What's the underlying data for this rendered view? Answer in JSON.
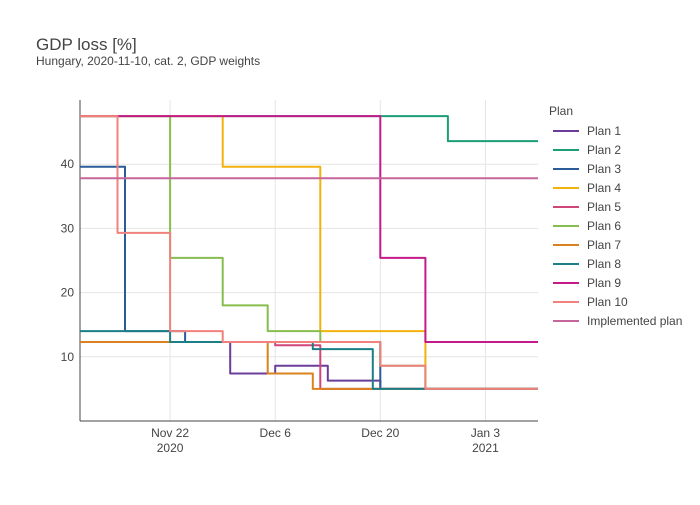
{
  "chart_data": {
    "type": "line",
    "line_shape": "step",
    "title": "GDP loss [%]",
    "subtitle": "Hungary, 2020-11-10, cat. 2, GDP weights",
    "xlim": [
      "2020-11-10",
      "2021-01-10"
    ],
    "ylim": [
      0,
      50
    ],
    "grid": true,
    "x_ticks": [
      {
        "date": "2020-11-22",
        "label": "Nov 22",
        "sublabel": "2020"
      },
      {
        "date": "2020-12-06",
        "label": "Dec 6",
        "sublabel": ""
      },
      {
        "date": "2020-12-20",
        "label": "Dec 20",
        "sublabel": ""
      },
      {
        "date": "2021-01-03",
        "label": "Jan 3",
        "sublabel": "2021"
      }
    ],
    "y_ticks": [
      10,
      20,
      30,
      40
    ],
    "legend": {
      "title": "Plan",
      "position": "right"
    },
    "series": [
      {
        "name": "Plan 1",
        "color": "#6a3d9a",
        "points": [
          [
            "2020-11-10",
            12.3
          ],
          [
            "2020-11-30",
            12.3
          ],
          [
            "2020-11-30",
            7.4
          ],
          [
            "2020-12-06",
            7.4
          ],
          [
            "2020-12-06",
            8.6
          ],
          [
            "2020-12-13",
            8.6
          ],
          [
            "2020-12-13",
            6.3
          ],
          [
            "2020-12-20",
            6.3
          ],
          [
            "2020-12-20",
            5.0
          ],
          [
            "2021-01-10",
            5.0
          ]
        ]
      },
      {
        "name": "Plan 2",
        "color": "#1b9e77",
        "points": [
          [
            "2020-11-10",
            47.5
          ],
          [
            "2020-12-29",
            47.5
          ],
          [
            "2020-12-29",
            43.6
          ],
          [
            "2021-01-10",
            43.6
          ]
        ]
      },
      {
        "name": "Plan 3",
        "color": "#2c5c97",
        "points": [
          [
            "2020-11-10",
            39.6
          ],
          [
            "2020-11-16",
            39.6
          ],
          [
            "2020-11-16",
            14.0
          ],
          [
            "2020-11-24",
            14.0
          ],
          [
            "2020-11-24",
            12.3
          ],
          [
            "2020-12-20",
            12.3
          ],
          [
            "2020-12-20",
            5.0
          ],
          [
            "2021-01-10",
            5.0
          ]
        ]
      },
      {
        "name": "Plan 4",
        "color": "#f2b20e",
        "points": [
          [
            "2020-11-10",
            47.5
          ],
          [
            "2020-11-29",
            47.5
          ],
          [
            "2020-11-29",
            39.6
          ],
          [
            "2020-12-12",
            39.6
          ],
          [
            "2020-12-12",
            14.0
          ],
          [
            "2020-12-26",
            14.0
          ],
          [
            "2020-12-26",
            5.0
          ],
          [
            "2021-01-10",
            5.0
          ]
        ]
      },
      {
        "name": "Plan 5",
        "color": "#d0467a",
        "points": [
          [
            "2020-11-10",
            12.3
          ],
          [
            "2020-12-06",
            12.3
          ],
          [
            "2020-12-06",
            11.8
          ],
          [
            "2020-12-12",
            11.8
          ],
          [
            "2020-12-12",
            5.0
          ],
          [
            "2021-01-10",
            5.0
          ]
        ]
      },
      {
        "name": "Plan 6",
        "color": "#86bd4f",
        "points": [
          [
            "2020-11-10",
            47.5
          ],
          [
            "2020-11-22",
            47.5
          ],
          [
            "2020-11-22",
            25.4
          ],
          [
            "2020-11-29",
            25.4
          ],
          [
            "2020-11-29",
            18.0
          ],
          [
            "2020-12-05",
            18.0
          ],
          [
            "2020-12-05",
            14.0
          ],
          [
            "2020-12-12",
            14.0
          ],
          [
            "2020-12-12",
            12.3
          ],
          [
            "2020-12-20",
            12.3
          ],
          [
            "2020-12-20",
            8.6
          ],
          [
            "2020-12-26",
            8.6
          ],
          [
            "2020-12-26",
            5.0
          ],
          [
            "2021-01-10",
            5.0
          ]
        ]
      },
      {
        "name": "Plan 7",
        "color": "#d9821f",
        "points": [
          [
            "2020-11-10",
            12.3
          ],
          [
            "2020-12-05",
            12.3
          ],
          [
            "2020-12-05",
            7.4
          ],
          [
            "2020-12-11",
            7.4
          ],
          [
            "2020-12-11",
            5.0
          ],
          [
            "2021-01-10",
            5.0
          ]
        ]
      },
      {
        "name": "Plan 8",
        "color": "#1d7f86",
        "points": [
          [
            "2020-11-10",
            14.0
          ],
          [
            "2020-11-22",
            14.0
          ],
          [
            "2020-11-22",
            12.3
          ],
          [
            "2020-12-11",
            12.3
          ],
          [
            "2020-12-11",
            11.2
          ],
          [
            "2020-12-19",
            11.2
          ],
          [
            "2020-12-19",
            5.0
          ],
          [
            "2021-01-10",
            5.0
          ]
        ]
      },
      {
        "name": "Plan 9",
        "color": "#c51b8a",
        "points": [
          [
            "2020-11-10",
            47.5
          ],
          [
            "2020-12-20",
            47.5
          ],
          [
            "2020-12-20",
            25.4
          ],
          [
            "2020-12-26",
            25.4
          ],
          [
            "2020-12-26",
            12.3
          ],
          [
            "2021-01-10",
            12.3
          ]
        ]
      },
      {
        "name": "Plan 10",
        "color": "#f0817c",
        "points": [
          [
            "2020-11-10",
            47.5
          ],
          [
            "2020-11-15",
            47.5
          ],
          [
            "2020-11-15",
            29.3
          ],
          [
            "2020-11-22",
            29.3
          ],
          [
            "2020-11-22",
            14.0
          ],
          [
            "2020-11-29",
            14.0
          ],
          [
            "2020-11-29",
            12.3
          ],
          [
            "2020-12-13",
            12.3
          ],
          [
            "2020-12-13",
            12.3
          ],
          [
            "2020-12-20",
            12.3
          ],
          [
            "2020-12-20",
            8.6
          ],
          [
            "2020-12-26",
            8.6
          ],
          [
            "2020-12-26",
            5.0
          ],
          [
            "2021-01-10",
            5.0
          ]
        ]
      },
      {
        "name": "Implemented plan",
        "color": "#c5669a",
        "points": [
          [
            "2020-11-10",
            37.8
          ],
          [
            "2021-01-10",
            37.8
          ]
        ]
      }
    ]
  }
}
